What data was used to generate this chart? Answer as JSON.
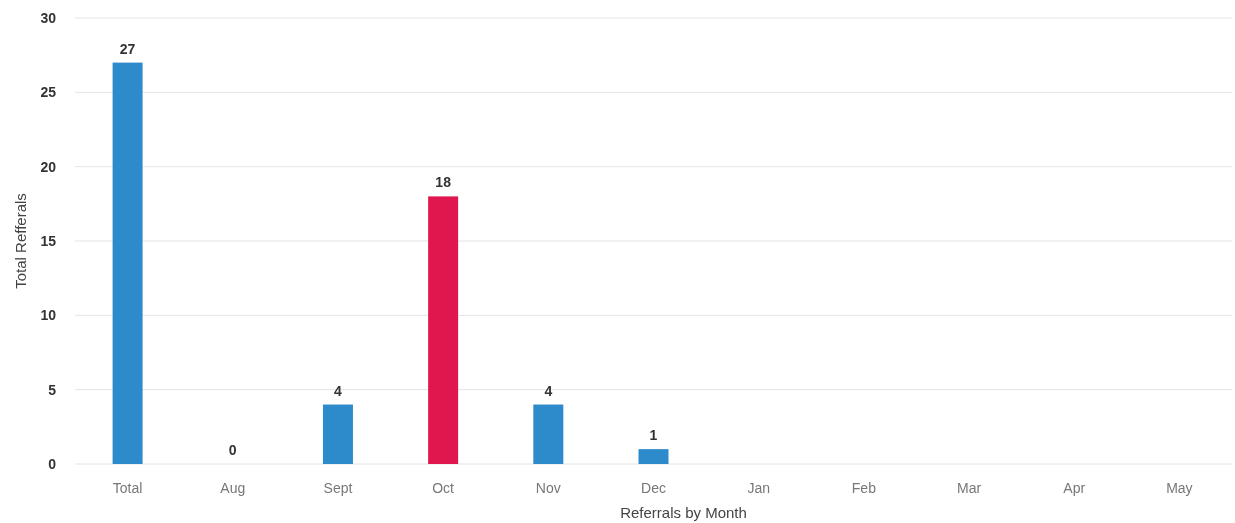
{
  "chart_data": {
    "type": "bar",
    "xlabel": "Referrals by Month",
    "ylabel": "Total Refferals",
    "categories": [
      "Total",
      "Aug",
      "Sept",
      "Oct",
      "Nov",
      "Dec",
      "Jan",
      "Feb",
      "Mar",
      "Apr",
      "May"
    ],
    "values": [
      27,
      0,
      4,
      18,
      4,
      1,
      null,
      null,
      null,
      null,
      null
    ],
    "colors": [
      "#2e8bcb",
      "#2e8bcb",
      "#2e8bcb",
      "#e0174f",
      "#2e8bcb",
      "#2e8bcb",
      null,
      null,
      null,
      null,
      null
    ],
    "ylim": [
      0,
      30
    ],
    "yticks": [
      0,
      5,
      10,
      15,
      20,
      25,
      30
    ],
    "grid": "y",
    "data_labels": true
  }
}
